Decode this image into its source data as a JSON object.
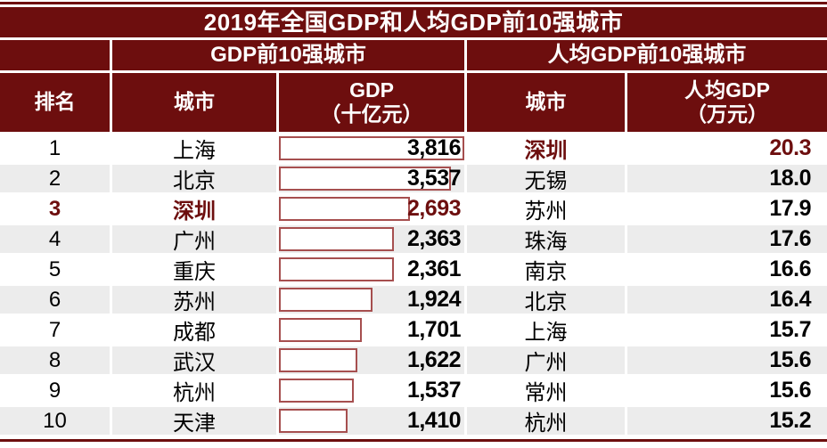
{
  "colors": {
    "maroon": "#6D0E0E",
    "bar_border": "#A64F4F",
    "alt_row": "#ECECEC",
    "text": "#000000"
  },
  "title": "2019年全国GDP和人均GDP前10强城市",
  "group_headers": {
    "gdp": "GDP前10强城市",
    "per_capita": "人均GDP前10强城市"
  },
  "column_headers": {
    "rank": "排名",
    "city_left": "城市",
    "gdp_line1": "GDP",
    "gdp_line2": "（十亿元）",
    "city_right": "城市",
    "pc_line1": "人均GDP",
    "pc_line2": "（万元）"
  },
  "gdp_max": 3816,
  "rows": [
    {
      "rank": "1",
      "gdp_city": "上海",
      "gdp_value": 3816,
      "gdp_display": "3,816",
      "gdp_highlight": false,
      "pc_city": "深圳",
      "pc_value": "20.3",
      "pc_highlight": true
    },
    {
      "rank": "2",
      "gdp_city": "北京",
      "gdp_value": 3537,
      "gdp_display": "3,537",
      "gdp_highlight": false,
      "pc_city": "无锡",
      "pc_value": "18.0",
      "pc_highlight": false
    },
    {
      "rank": "3",
      "gdp_city": "深圳",
      "gdp_value": 2693,
      "gdp_display": "2,693",
      "gdp_highlight": true,
      "pc_city": "苏州",
      "pc_value": "17.9",
      "pc_highlight": false
    },
    {
      "rank": "4",
      "gdp_city": "广州",
      "gdp_value": 2363,
      "gdp_display": "2,363",
      "gdp_highlight": false,
      "pc_city": "珠海",
      "pc_value": "17.6",
      "pc_highlight": false
    },
    {
      "rank": "5",
      "gdp_city": "重庆",
      "gdp_value": 2361,
      "gdp_display": "2,361",
      "gdp_highlight": false,
      "pc_city": "南京",
      "pc_value": "16.6",
      "pc_highlight": false
    },
    {
      "rank": "6",
      "gdp_city": "苏州",
      "gdp_value": 1924,
      "gdp_display": "1,924",
      "gdp_highlight": false,
      "pc_city": "北京",
      "pc_value": "16.4",
      "pc_highlight": false
    },
    {
      "rank": "7",
      "gdp_city": "成都",
      "gdp_value": 1701,
      "gdp_display": "1,701",
      "gdp_highlight": false,
      "pc_city": "上海",
      "pc_value": "15.7",
      "pc_highlight": false
    },
    {
      "rank": "8",
      "gdp_city": "武汉",
      "gdp_value": 1622,
      "gdp_display": "1,622",
      "gdp_highlight": false,
      "pc_city": "广州",
      "pc_value": "15.6",
      "pc_highlight": false
    },
    {
      "rank": "9",
      "gdp_city": "杭州",
      "gdp_value": 1537,
      "gdp_display": "1,537",
      "gdp_highlight": false,
      "pc_city": "常州",
      "pc_value": "15.6",
      "pc_highlight": false
    },
    {
      "rank": "10",
      "gdp_city": "天津",
      "gdp_value": 1410,
      "gdp_display": "1,410",
      "gdp_highlight": false,
      "pc_city": "杭州",
      "pc_value": "15.2",
      "pc_highlight": false
    }
  ],
  "chart_data": {
    "type": "table",
    "title": "2019年全国GDP和人均GDP前10强城市",
    "notes": "GDP column rendered as proportional data bars; max bar = 3816",
    "series": [
      {
        "name": "GDP前10强城市 (GDP, 十亿元)",
        "categories": [
          "上海",
          "北京",
          "深圳",
          "广州",
          "重庆",
          "苏州",
          "成都",
          "武汉",
          "杭州",
          "天津"
        ],
        "values": [
          3816,
          3537,
          2693,
          2363,
          2361,
          1924,
          1701,
          1622,
          1537,
          1410
        ]
      },
      {
        "name": "人均GDP前10强城市 (人均GDP, 万元)",
        "categories": [
          "深圳",
          "无锡",
          "苏州",
          "珠海",
          "南京",
          "北京",
          "上海",
          "广州",
          "常州",
          "杭州"
        ],
        "values": [
          20.3,
          18.0,
          17.9,
          17.6,
          16.6,
          16.4,
          15.7,
          15.6,
          15.6,
          15.2
        ]
      }
    ],
    "highlighted": {
      "gdp_rank_3": "深圳 2,693",
      "per_capita_rank_1": "深圳 20.3"
    }
  }
}
